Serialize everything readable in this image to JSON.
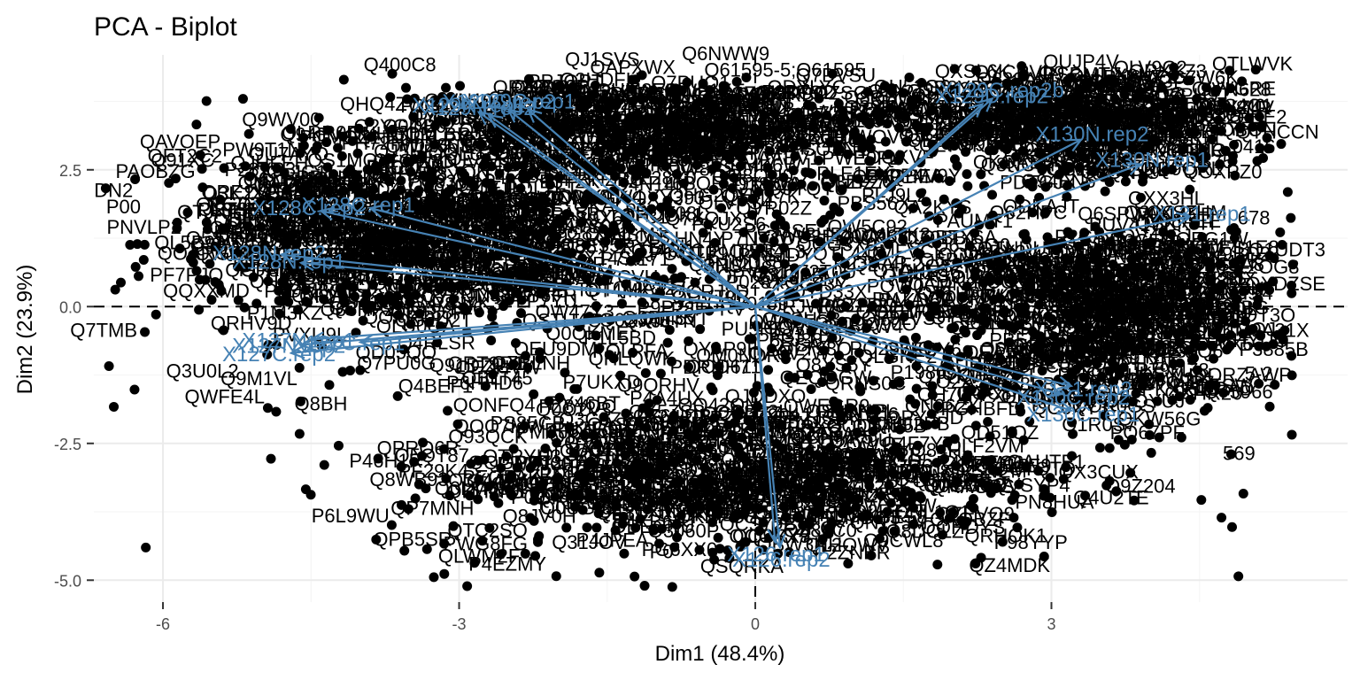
{
  "chart_data": {
    "type": "scatter",
    "title": "PCA - Biplot",
    "xlabel": "Dim1 (48.4%)",
    "ylabel": "Dim2 (23.9%)",
    "xlim": [
      -6.7,
      6.0
    ],
    "ylim": [
      -5.4,
      4.6
    ],
    "x_ticks": [
      -6,
      -3,
      0,
      3
    ],
    "x_tick_labels": [
      "-6",
      "-3",
      "0",
      "3"
    ],
    "y_ticks": [
      -5.0,
      -2.5,
      0.0,
      2.5
    ],
    "y_tick_labels": [
      "-5.0",
      "-2.5",
      "0.0",
      "2.5"
    ],
    "grid": true,
    "colors": {
      "points": "#000000",
      "arrows": "#4682b4",
      "grid_major": "#ebebeb",
      "grid_minor": "#f5f5f5",
      "zero_line": "#000000"
    },
    "variables": [
      {
        "name": "X126.rep1",
        "x": 0.2,
        "y": -4.3
      },
      {
        "name": "X126.rep2",
        "x": 0.25,
        "y": -4.4
      },
      {
        "name": "X127C.rep1",
        "x": -4.0,
        "y": -0.65
      },
      {
        "name": "X127C.rep2",
        "x": -4.7,
        "y": -0.85
      },
      {
        "name": "X127N.rep1",
        "x": -4.5,
        "y": -0.6
      },
      {
        "name": "X127N.rep2",
        "x": -4.6,
        "y": -0.7
      },
      {
        "name": "X128C.rep1",
        "x": -3.9,
        "y": 1.8
      },
      {
        "name": "X128C.rep2",
        "x": -4.4,
        "y": 1.75
      },
      {
        "name": "X128N.rep1",
        "x": -4.6,
        "y": 0.8
      },
      {
        "name": "X128N.rep2",
        "x": -4.8,
        "y": 0.95
      },
      {
        "name": "X129C.rep1",
        "x": -2.3,
        "y": 3.6
      },
      {
        "name": "X129N.rep1",
        "x": -2.8,
        "y": 3.55
      },
      {
        "name": "X129C.rep2",
        "x": -2.5,
        "y": 3.6
      },
      {
        "name": "X129N.rep2",
        "x": -2.7,
        "y": 3.5
      },
      {
        "name": "X129C.rep2b",
        "x": 2.4,
        "y": 3.8
      },
      {
        "name": "X129D.rep2",
        "x": 2.3,
        "y": 3.7
      },
      {
        "name": "X130N.rep2",
        "x": 3.3,
        "y": 3.05
      },
      {
        "name": "X130N.rep1",
        "x": 3.9,
        "y": 2.6
      },
      {
        "name": "X131.rep1",
        "x": 4.4,
        "y": 1.65
      },
      {
        "name": "X131.rep2",
        "x": 3.2,
        "y": -1.45
      },
      {
        "name": "X130C.rep2",
        "x": 3.1,
        "y": -1.6
      },
      {
        "name": "X130C.rep1",
        "x": 3.2,
        "y": -1.9
      }
    ],
    "point_labels": [
      {
        "text": "Q400C8",
        "x": -3.6,
        "y": 4.3
      },
      {
        "text": "Q6NWW9",
        "x": -0.3,
        "y": 4.5
      },
      {
        "text": "Q61595-5;Q61595",
        "x": 0.3,
        "y": 4.2
      },
      {
        "text": "Q8RHC4",
        "x": 1.3,
        "y": 3.7
      },
      {
        "text": "Q9WV00",
        "x": -4.8,
        "y": 3.3
      },
      {
        "text": "Q91XC",
        "x": -5.8,
        "y": 2.55
      },
      {
        "text": "DN2",
        "x": -6.5,
        "y": 2.0
      },
      {
        "text": "P00",
        "x": -6.4,
        "y": 1.7
      },
      {
        "text": "Q7TMB",
        "x": -6.6,
        "y": -0.55
      },
      {
        "text": "Q3U0L2",
        "x": -5.6,
        "y": -1.3
      },
      {
        "text": "Q8BH",
        "x": -4.4,
        "y": -1.9
      },
      {
        "text": "P09",
        "x": -2.3,
        "y": -3.6
      },
      {
        "text": "P0",
        "x": -0.95,
        "y": -4.6
      },
      {
        "text": "Q9CWL8",
        "x": 1.5,
        "y": -4.4
      },
      {
        "text": "Q9Z204",
        "x": 3.9,
        "y": -3.4
      },
      {
        "text": "0416",
        "x": 5.05,
        "y": 2.8
      },
      {
        "text": "Y0",
        "x": 5.05,
        "y": 3.55
      },
      {
        "text": "678",
        "x": 5.05,
        "y": 1.5
      },
      {
        "text": "5-2",
        "x": 5.1,
        "y": -1.35
      },
      {
        "text": "569",
        "x": 4.9,
        "y": -2.8
      },
      {
        "text": "Q9",
        "x": 3.0,
        "y": 4.15
      }
    ]
  }
}
